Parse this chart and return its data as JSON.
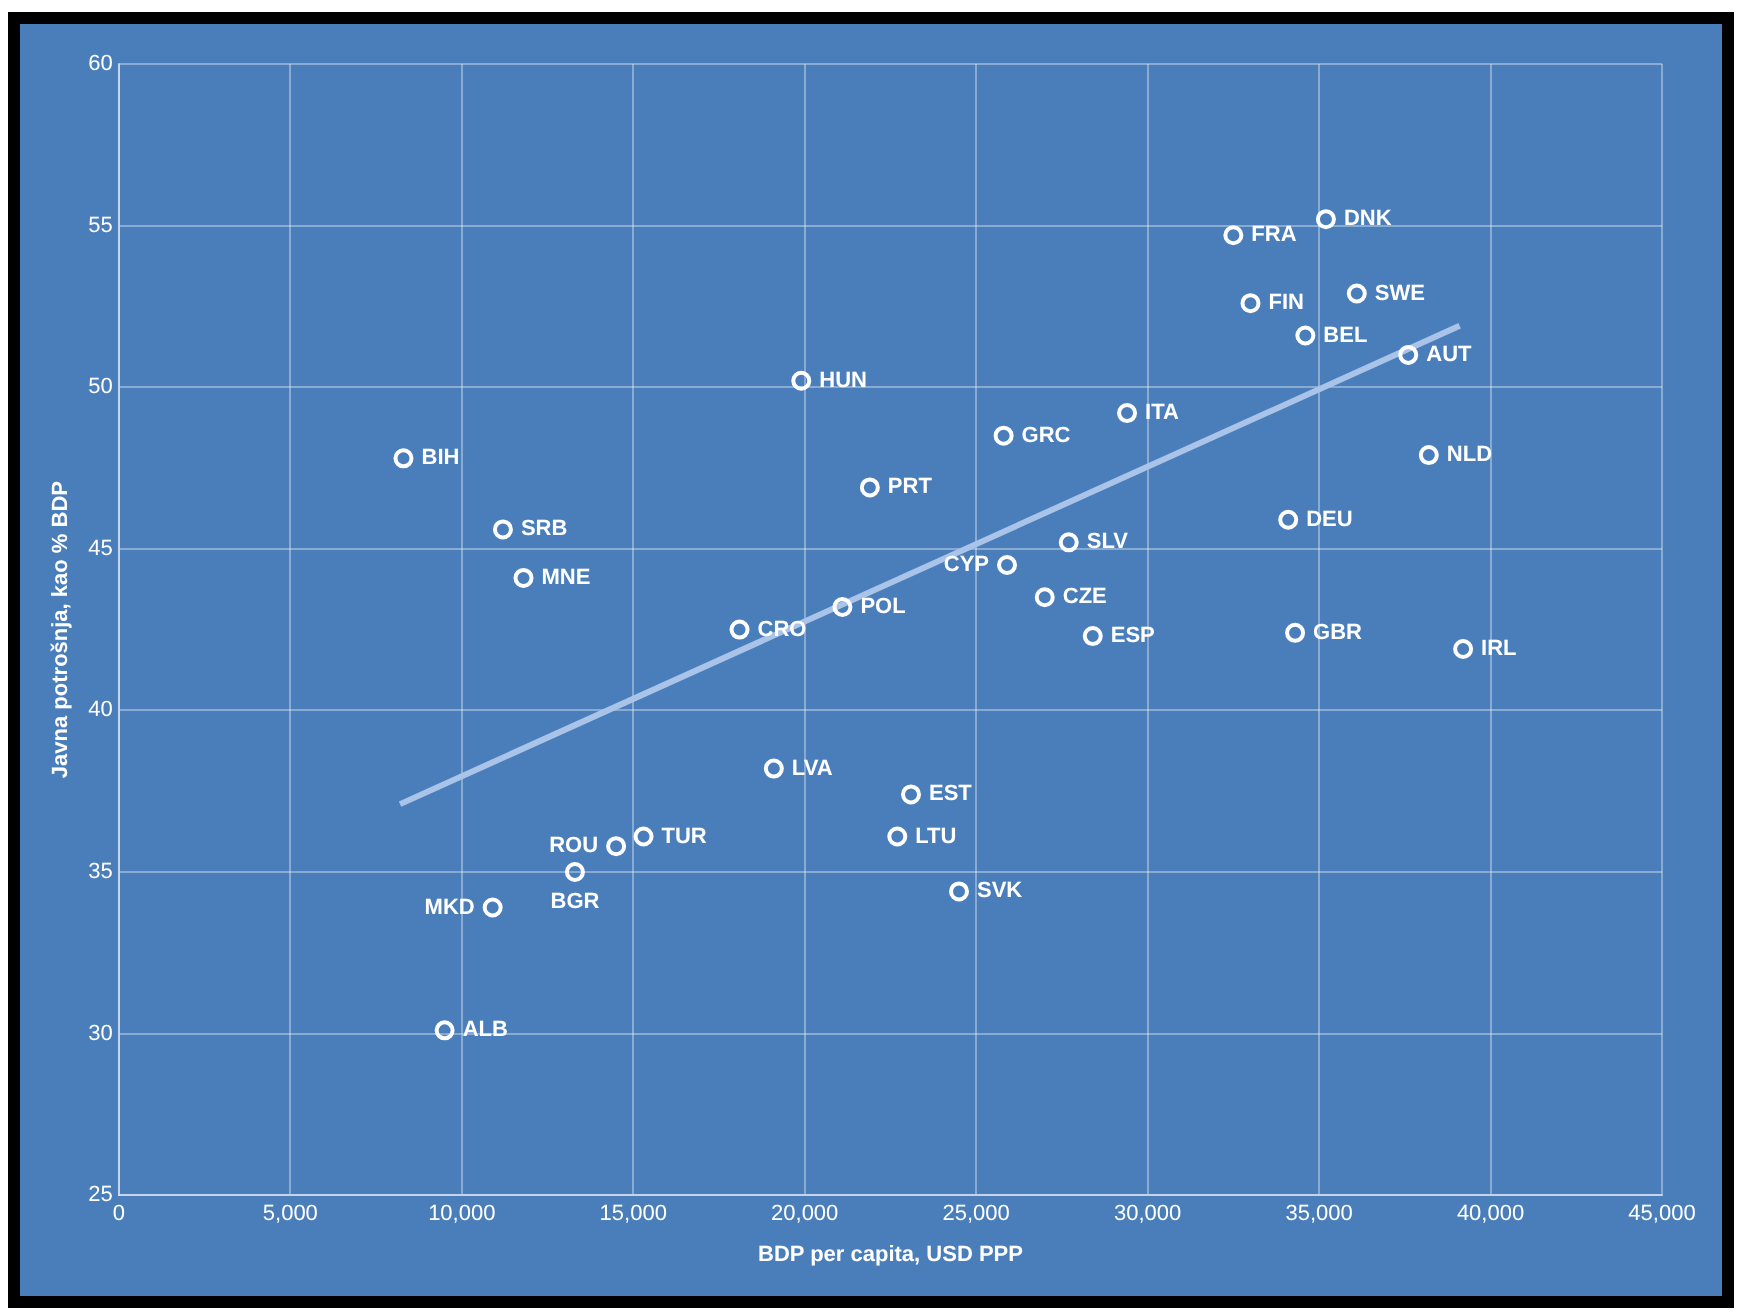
{
  "chart_data": {
    "type": "scatter",
    "xlabel": "BDP per capita, USD PPP",
    "ylabel": "Javna potrošnja, kao % BDP",
    "xlim": [
      0,
      45000
    ],
    "xticks": [
      {
        "value": 0,
        "label": "0"
      },
      {
        "value": 5000,
        "label": "5,000"
      },
      {
        "value": 10000,
        "label": "10,000"
      },
      {
        "value": 15000,
        "label": "15,000"
      },
      {
        "value": 20000,
        "label": "20,000"
      },
      {
        "value": 25000,
        "label": "25,000"
      },
      {
        "value": 30000,
        "label": "30,000"
      },
      {
        "value": 35000,
        "label": "35,000"
      },
      {
        "value": 40000,
        "label": "40,000"
      },
      {
        "value": 45000,
        "label": "45,000"
      }
    ],
    "ylim": [
      25,
      60
    ],
    "yticks": [
      25,
      30,
      35,
      40,
      45,
      50,
      55,
      60
    ],
    "grid": true,
    "legend": false,
    "marker": "circle",
    "series": [
      {
        "color": "#ffffff",
        "x": [
          35200,
          32500,
          36100,
          33000,
          34600,
          37600,
          19900,
          29400,
          25800,
          38200,
          8300,
          21900,
          34100,
          11200,
          27700,
          25900,
          11800,
          27000,
          21100,
          18100,
          34300,
          28400,
          39200,
          19100,
          23100,
          15300,
          22700,
          14500,
          13300,
          24500,
          10900,
          9500
        ],
        "values": [
          55.2,
          54.7,
          52.9,
          52.6,
          51.6,
          51.0,
          50.2,
          49.2,
          48.5,
          47.9,
          47.8,
          46.9,
          45.9,
          45.6,
          45.2,
          44.5,
          44.1,
          43.5,
          43.2,
          42.5,
          42.4,
          42.3,
          41.9,
          38.2,
          37.4,
          36.1,
          36.1,
          35.8,
          35.0,
          34.4,
          33.9,
          30.1
        ]
      },
      {
        "type": "line",
        "color": "#a9c4e8",
        "marker": "none",
        "x": [
          8200,
          39100
        ],
        "values": [
          37.1,
          51.9
        ]
      }
    ],
    "annotations": [
      {
        "text": "DNK",
        "x": 35200,
        "y": 55.2
      },
      {
        "text": "FRA",
        "x": 32500,
        "y": 54.7
      },
      {
        "text": "SWE",
        "x": 36100,
        "y": 52.9
      },
      {
        "text": "FIN",
        "x": 33000,
        "y": 52.6
      },
      {
        "text": "BEL",
        "x": 34600,
        "y": 51.6
      },
      {
        "text": "AUT",
        "x": 37600,
        "y": 51.0
      },
      {
        "text": "HUN",
        "x": 19900,
        "y": 50.2
      },
      {
        "text": "ITA",
        "x": 29400,
        "y": 49.2
      },
      {
        "text": "GRC",
        "x": 25800,
        "y": 48.5
      },
      {
        "text": "NLD",
        "x": 38200,
        "y": 47.9
      },
      {
        "text": "BIH",
        "x": 8300,
        "y": 47.8
      },
      {
        "text": "PRT",
        "x": 21900,
        "y": 46.9
      },
      {
        "text": "DEU",
        "x": 34100,
        "y": 45.9
      },
      {
        "text": "SRB",
        "x": 11200,
        "y": 45.6
      },
      {
        "text": "SLV",
        "x": 27700,
        "y": 45.2
      },
      {
        "text": "CYP",
        "x": 25900,
        "y": 44.5
      },
      {
        "text": "MNE",
        "x": 11800,
        "y": 44.1
      },
      {
        "text": "CZE",
        "x": 27000,
        "y": 43.5
      },
      {
        "text": "POL",
        "x": 21100,
        "y": 43.2
      },
      {
        "text": "CRO",
        "x": 18100,
        "y": 42.5
      },
      {
        "text": "GBR",
        "x": 34300,
        "y": 42.4
      },
      {
        "text": "ESP",
        "x": 28400,
        "y": 42.3
      },
      {
        "text": "IRL",
        "x": 39200,
        "y": 41.9
      },
      {
        "text": "LVA",
        "x": 19100,
        "y": 38.2
      },
      {
        "text": "EST",
        "x": 23100,
        "y": 37.4
      },
      {
        "text": "TUR",
        "x": 15300,
        "y": 36.1
      },
      {
        "text": "LTU",
        "x": 22700,
        "y": 36.1
      },
      {
        "text": "ROU",
        "x": 14500,
        "y": 35.8
      },
      {
        "text": "BGR",
        "x": 13300,
        "y": 35.0
      },
      {
        "text": "SVK",
        "x": 24500,
        "y": 34.4
      },
      {
        "text": "MKD",
        "x": 10900,
        "y": 33.9
      },
      {
        "text": "ALB",
        "x": 9500,
        "y": 30.1
      }
    ]
  }
}
